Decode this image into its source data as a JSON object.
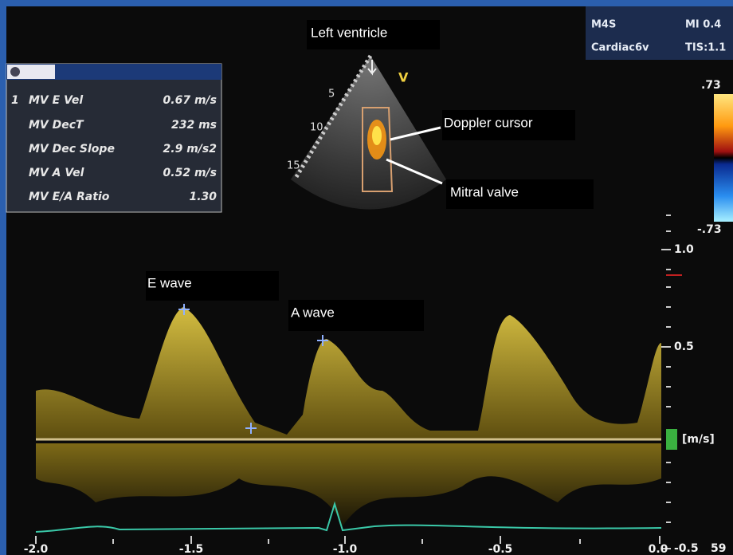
{
  "header": {
    "probe": "M4S",
    "mi": "MI 0.4",
    "preset": "Cardiac6v",
    "tis": "TIS:1.1"
  },
  "measurements": {
    "rows": [
      {
        "index": "1",
        "name": "MV E Vel",
        "value": "0.67 m/s"
      },
      {
        "name": "MV DecT",
        "value": "232 ms"
      },
      {
        "name": "MV Dec Slope",
        "value": "2.9 m/s2"
      },
      {
        "name": "MV A Vel",
        "value": "0.52 m/s"
      },
      {
        "name": "MV E/A Ratio",
        "value": "1.30"
      }
    ]
  },
  "color_scale": {
    "max": ".73",
    "min": "-.73"
  },
  "sector": {
    "mark": "V",
    "depths": [
      "5",
      "10",
      "15"
    ]
  },
  "annotations": [
    "Left ventricle",
    "Doppler cursor",
    "Mitral valve",
    "E wave",
    "A wave"
  ],
  "velocity_scale": {
    "ticks": [
      "1.0",
      "0.5",
      "-0.5"
    ],
    "unit": "[m/s]"
  },
  "time_axis": {
    "ticks": [
      "-2.0",
      "-1.5",
      "-1.0",
      "-0.5",
      "0.0"
    ]
  },
  "corner": "59"
}
